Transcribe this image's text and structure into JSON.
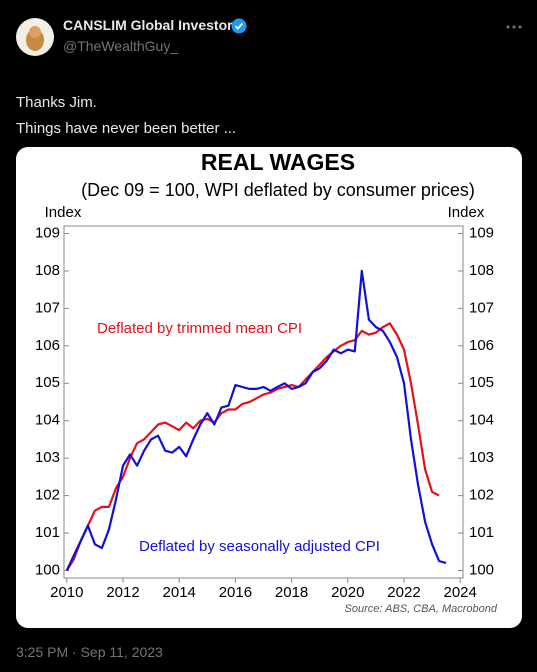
{
  "header": {
    "name": "CANSLIM Global Investor",
    "handle": "@TheWealthGuy_"
  },
  "tweet": {
    "lines": [
      "Thanks Jim.",
      "Things have never been better ..."
    ]
  },
  "footer": {
    "timestamp": "3:25 PM · Sep 11, 2023"
  },
  "chart_data": {
    "type": "line",
    "title": "REAL WAGES",
    "subtitle": "(Dec 09 = 100, WPI deflated by consumer prices)",
    "y_label": "Index",
    "y2_label": "Index",
    "source": "Source: ABS, CBA, Macrobond",
    "x": [
      2010,
      2010.25,
      2010.5,
      2010.75,
      2011,
      2011.25,
      2011.5,
      2011.75,
      2012,
      2012.25,
      2012.5,
      2012.75,
      2013,
      2013.25,
      2013.5,
      2013.75,
      2014,
      2014.25,
      2014.5,
      2014.75,
      2015,
      2015.25,
      2015.5,
      2015.75,
      2016,
      2016.25,
      2016.5,
      2016.75,
      2017,
      2017.25,
      2017.5,
      2017.75,
      2018,
      2018.25,
      2018.5,
      2018.75,
      2019,
      2019.25,
      2019.5,
      2019.75,
      2020,
      2020.25,
      2020.5,
      2020.75,
      2021,
      2021.25,
      2021.5,
      2021.75,
      2022,
      2022.25,
      2022.5,
      2022.75,
      2023,
      2023.25,
      2023.5
    ],
    "series": [
      {
        "name": "Deflated by trimmed mean CPI",
        "color": "#e3111b",
        "values": [
          100,
          100.3,
          100.8,
          101.2,
          101.6,
          101.7,
          101.7,
          102.2,
          102.5,
          103.0,
          103.4,
          103.5,
          103.7,
          103.9,
          103.95,
          103.85,
          103.75,
          103.95,
          103.8,
          104.0,
          104.05,
          103.95,
          104.2,
          104.3,
          104.3,
          104.45,
          104.5,
          104.6,
          104.7,
          104.75,
          104.85,
          104.9,
          104.95,
          104.9,
          105.1,
          105.3,
          105.5,
          105.7,
          105.85,
          106.0,
          106.1,
          106.15,
          106.4,
          106.3,
          106.35,
          106.5,
          106.6,
          106.3,
          105.9,
          105.0,
          103.9,
          102.7,
          102.1,
          102.0,
          null
        ]
      },
      {
        "name": "Deflated by seasonally adjusted CPI",
        "color": "#1010d6",
        "values": [
          100,
          100.4,
          100.8,
          101.2,
          100.7,
          100.6,
          101.1,
          101.9,
          102.8,
          103.1,
          102.8,
          103.2,
          103.5,
          103.6,
          103.2,
          103.15,
          103.3,
          103.05,
          103.5,
          103.9,
          104.2,
          103.9,
          104.35,
          104.4,
          104.95,
          104.9,
          104.85,
          104.85,
          104.9,
          104.8,
          104.9,
          105.0,
          104.85,
          104.9,
          105.0,
          105.3,
          105.4,
          105.6,
          105.9,
          105.8,
          105.9,
          105.85,
          108.0,
          106.7,
          106.5,
          106.4,
          106.1,
          105.7,
          105.0,
          103.5,
          102.3,
          101.3,
          100.7,
          100.25,
          100.2
        ]
      }
    ],
    "xlim": [
      2009.9,
      2024.1
    ],
    "xticks": [
      2010,
      2012,
      2014,
      2016,
      2018,
      2020,
      2022,
      2024
    ],
    "ylim": [
      99.8,
      109.2
    ],
    "yticks": [
      100,
      101,
      102,
      103,
      104,
      105,
      106,
      107,
      108,
      109
    ],
    "y2lim": [
      99.8,
      109.2
    ],
    "y2ticks": [
      100,
      101,
      102,
      103,
      104,
      105,
      106,
      107,
      108,
      109
    ]
  }
}
